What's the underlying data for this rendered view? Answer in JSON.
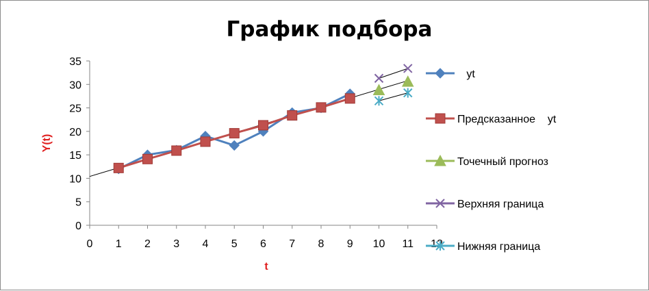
{
  "chart_data": {
    "type": "line",
    "title": "График подбора",
    "xlabel": "t",
    "ylabel": "Y(t)",
    "xlim": [
      0,
      12
    ],
    "ylim": [
      0,
      35
    ],
    "x_ticks": [
      0,
      1,
      2,
      3,
      4,
      5,
      6,
      7,
      8,
      9,
      10,
      11,
      12
    ],
    "y_ticks": [
      0,
      5,
      10,
      15,
      20,
      25,
      30,
      35
    ],
    "grid": false,
    "legend_position": "right",
    "series": [
      {
        "name": "yt",
        "color": "#4f81bd",
        "marker": "diamond",
        "line": true,
        "x": [
          1,
          2,
          3,
          4,
          5,
          6,
          7,
          8,
          9
        ],
        "values": [
          12,
          15,
          16,
          19,
          17,
          20,
          24,
          25,
          28
        ]
      },
      {
        "name": "Предсказанное    yt",
        "color": "#c0504d",
        "marker": "square",
        "line": true,
        "x": [
          1,
          2,
          3,
          4,
          5,
          6,
          7,
          8,
          9
        ],
        "values": [
          12.2,
          14.1,
          15.9,
          17.8,
          19.6,
          21.3,
          23.4,
          25.1,
          27.0
        ]
      },
      {
        "name": "Точечный прогноз",
        "color": "#9bbb59",
        "marker": "triangle",
        "line": false,
        "x": [
          10,
          11
        ],
        "values": [
          28.8,
          30.6
        ]
      },
      {
        "name": "Верхняя граница",
        "color": "#8064a2",
        "marker": "x",
        "line": false,
        "x": [
          10,
          11
        ],
        "values": [
          31.3,
          33.4
        ]
      },
      {
        "name": "Нижняя граница",
        "color": "#4bacc6",
        "marker": "star",
        "line": false,
        "x": [
          10,
          11
        ],
        "values": [
          26.5,
          28.2
        ]
      }
    ],
    "trend_lines": [
      {
        "color": "#000000",
        "x": [
          0,
          11
        ],
        "values": [
          10.4,
          30.8
        ]
      },
      {
        "color": "#000000",
        "x": [
          10,
          11
        ],
        "values": [
          31.3,
          33.4
        ]
      },
      {
        "color": "#000000",
        "x": [
          10,
          11
        ],
        "values": [
          26.5,
          28.2
        ]
      }
    ]
  }
}
